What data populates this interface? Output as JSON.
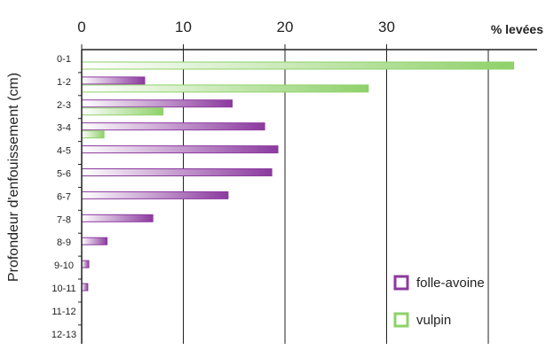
{
  "chart_data": {
    "type": "bar",
    "orientation": "horizontal",
    "title": "",
    "xlabel": "% levées",
    "ylabel": "Profondeur d'enfouissement (cm)",
    "xlim": [
      0,
      46
    ],
    "xticks": [
      0,
      10,
      20,
      30
    ],
    "grid": true,
    "legend_position": "bottom-right",
    "categories": [
      "0-1",
      "1-2",
      "2-3",
      "3-4",
      "4-5",
      "5-6",
      "6-7",
      "7-8",
      "8-9",
      "9-10",
      "10-11",
      "11-12",
      "12-13"
    ],
    "series": [
      {
        "name": "folle-avoine",
        "color": "#8b3a9e",
        "values": [
          0,
          6.2,
          14.8,
          18,
          19.3,
          18.7,
          14.4,
          7,
          2.5,
          0.7,
          0.6,
          0,
          0
        ]
      },
      {
        "name": "vulpin",
        "color": "#8fd16a",
        "values": [
          42.5,
          28.2,
          8,
          2.2,
          0,
          0,
          0,
          0,
          0,
          0,
          0,
          0,
          0
        ]
      }
    ]
  }
}
